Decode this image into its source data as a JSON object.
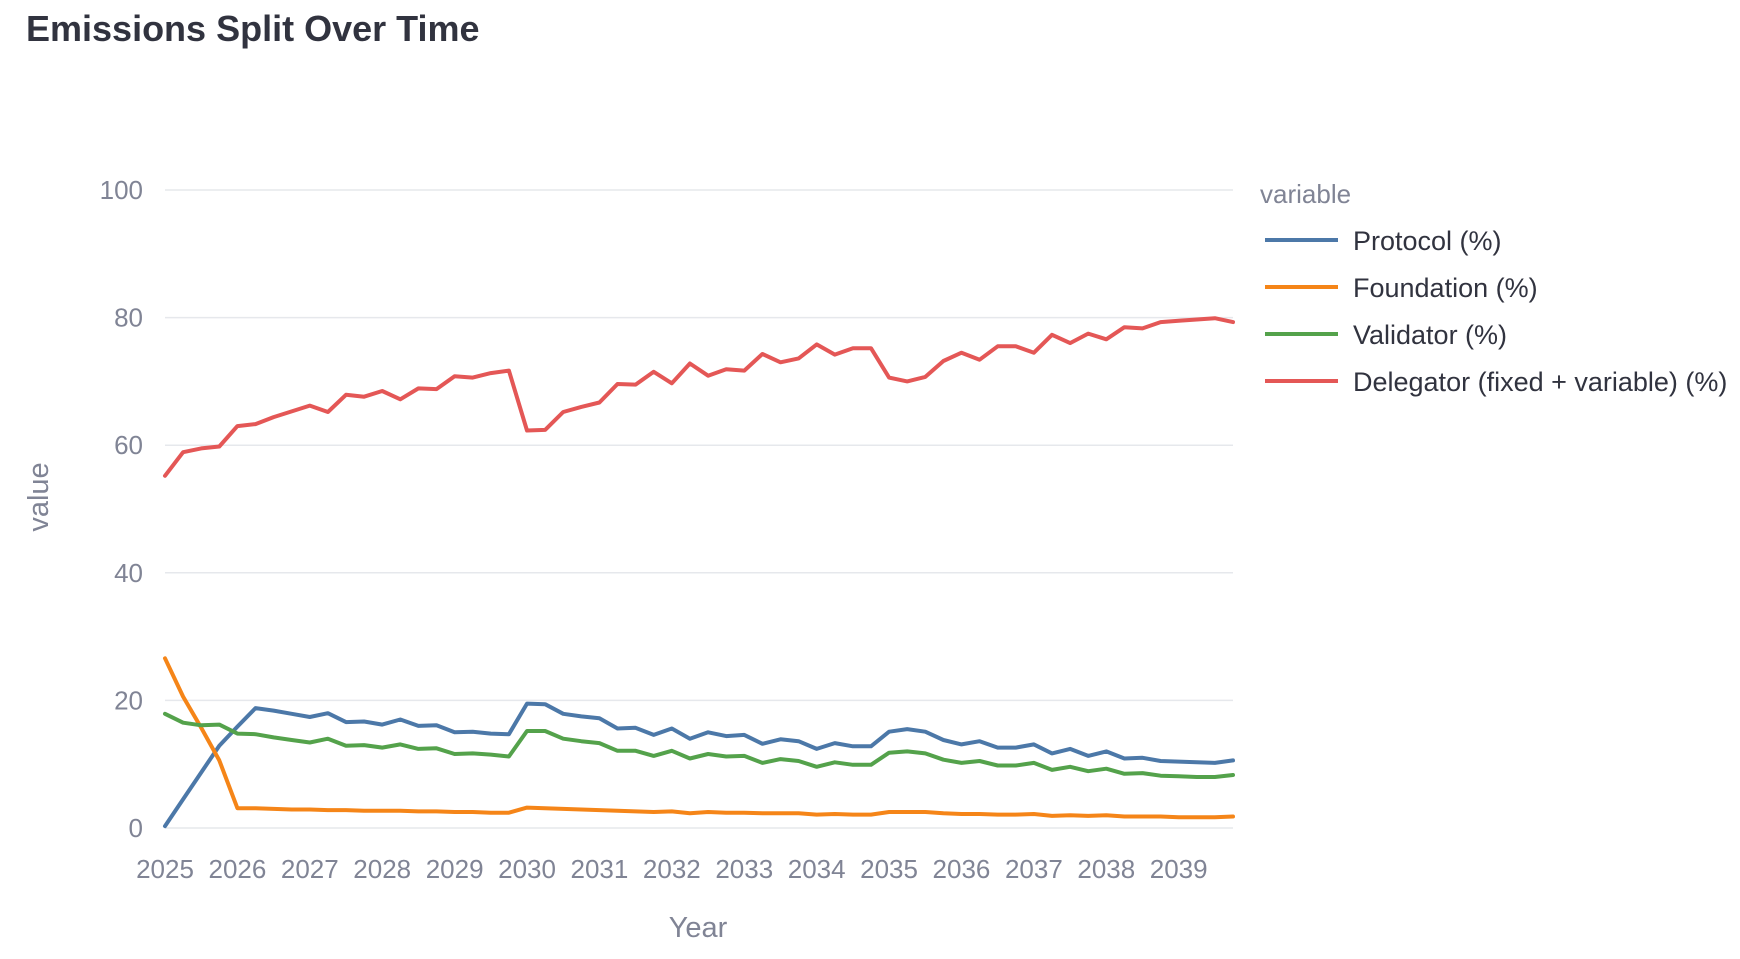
{
  "title": "Emissions Split Over Time",
  "chart_data": {
    "type": "line",
    "title": "Emissions Split Over Time",
    "xlabel": "Year",
    "ylabel": "value",
    "xlim": [
      2025,
      2039.75
    ],
    "ylim": [
      0,
      100
    ],
    "x_ticks": [
      "2025",
      "2026",
      "2027",
      "2028",
      "2029",
      "2030",
      "2031",
      "2032",
      "2033",
      "2034",
      "2035",
      "2036",
      "2037",
      "2038",
      "2039"
    ],
    "y_ticks": [
      "0",
      "20",
      "40",
      "60",
      "80",
      "100"
    ],
    "grid": true,
    "legend": {
      "title": "variable",
      "placement": "right"
    },
    "x": [
      2025,
      2025.25,
      2025.5,
      2025.75,
      2026,
      2026.25,
      2026.5,
      2026.75,
      2027,
      2027.25,
      2027.5,
      2027.75,
      2028,
      2028.25,
      2028.5,
      2028.75,
      2029,
      2029.25,
      2029.5,
      2029.75,
      2030,
      2030.25,
      2030.5,
      2030.75,
      2031,
      2031.25,
      2031.5,
      2031.75,
      2032,
      2032.25,
      2032.5,
      2032.75,
      2033,
      2033.25,
      2033.5,
      2033.75,
      2034,
      2034.25,
      2034.5,
      2034.75,
      2035,
      2035.25,
      2035.5,
      2035.75,
      2036,
      2036.25,
      2036.5,
      2036.75,
      2037,
      2037.25,
      2037.5,
      2037.75,
      2038,
      2038.25,
      2038.5,
      2038.75,
      2039,
      2039.25,
      2039.5,
      2039.75
    ],
    "series": [
      {
        "name": "Protocol (%)",
        "color": "#4c78a8",
        "values": [
          0.3,
          4.5,
          8.7,
          12.9,
          15.9,
          18.8,
          18.4,
          17.9,
          17.4,
          18,
          16.6,
          16.7,
          16.2,
          17,
          16,
          16.1,
          15,
          15.1,
          14.8,
          14.7,
          19.5,
          19.4,
          17.9,
          17.5,
          17.2,
          15.6,
          15.7,
          14.6,
          15.6,
          14,
          15,
          14.4,
          14.6,
          13.2,
          13.9,
          13.6,
          12.4,
          13.3,
          12.8,
          12.8,
          15.1,
          15.5,
          15.1,
          13.8,
          13.1,
          13.6,
          12.6,
          12.6,
          13.1,
          11.7,
          12.4,
          11.3,
          12,
          10.9,
          11,
          10.5,
          10.4,
          10.3,
          10.2,
          10.6
        ]
      },
      {
        "name": "Foundation (%)",
        "color": "#f58518",
        "values": [
          26.6,
          20.6,
          15.7,
          10.6,
          3.1,
          3.1,
          3,
          2.9,
          2.9,
          2.8,
          2.8,
          2.7,
          2.7,
          2.7,
          2.6,
          2.6,
          2.5,
          2.5,
          2.4,
          2.4,
          3.2,
          3.1,
          3,
          2.9,
          2.8,
          2.7,
          2.6,
          2.5,
          2.6,
          2.3,
          2.5,
          2.4,
          2.4,
          2.3,
          2.3,
          2.3,
          2.1,
          2.2,
          2.1,
          2.1,
          2.5,
          2.5,
          2.5,
          2.3,
          2.2,
          2.2,
          2.1,
          2.1,
          2.2,
          1.9,
          2,
          1.9,
          2,
          1.8,
          1.8,
          1.8,
          1.7,
          1.7,
          1.7,
          1.8
        ]
      },
      {
        "name": "Validator (%)",
        "color": "#54a24b",
        "values": [
          17.9,
          16.5,
          16.1,
          16.2,
          14.8,
          14.7,
          14.2,
          13.8,
          13.4,
          14,
          12.9,
          13,
          12.6,
          13.1,
          12.4,
          12.5,
          11.6,
          11.7,
          11.5,
          11.2,
          15.2,
          15.2,
          14,
          13.6,
          13.3,
          12.1,
          12.1,
          11.3,
          12.1,
          10.9,
          11.6,
          11.2,
          11.3,
          10.2,
          10.8,
          10.5,
          9.6,
          10.3,
          9.9,
          9.9,
          11.8,
          12,
          11.7,
          10.7,
          10.2,
          10.5,
          9.8,
          9.8,
          10.2,
          9.1,
          9.6,
          8.9,
          9.3,
          8.5,
          8.6,
          8.2,
          8.1,
          8,
          8,
          8.3
        ]
      },
      {
        "name": "Delegator (fixed + variable) (%)",
        "color": "#e45756",
        "values": [
          55.2,
          58.9,
          59.5,
          59.8,
          63,
          63.3,
          64.4,
          65.3,
          66.2,
          65.2,
          67.9,
          67.6,
          68.5,
          67.2,
          68.9,
          68.8,
          70.8,
          70.6,
          71.3,
          71.7,
          62.3,
          62.4,
          65.2,
          66,
          66.7,
          69.6,
          69.5,
          71.5,
          69.7,
          72.8,
          70.9,
          71.9,
          71.7,
          74.3,
          73,
          73.6,
          75.8,
          74.2,
          75.2,
          75.2,
          70.6,
          70,
          70.7,
          73.2,
          74.5,
          73.4,
          75.5,
          75.5,
          74.5,
          77.3,
          76,
          77.5,
          76.6,
          78.5,
          78.3,
          79.3,
          79.5,
          79.7,
          79.9,
          79.3
        ]
      }
    ]
  }
}
